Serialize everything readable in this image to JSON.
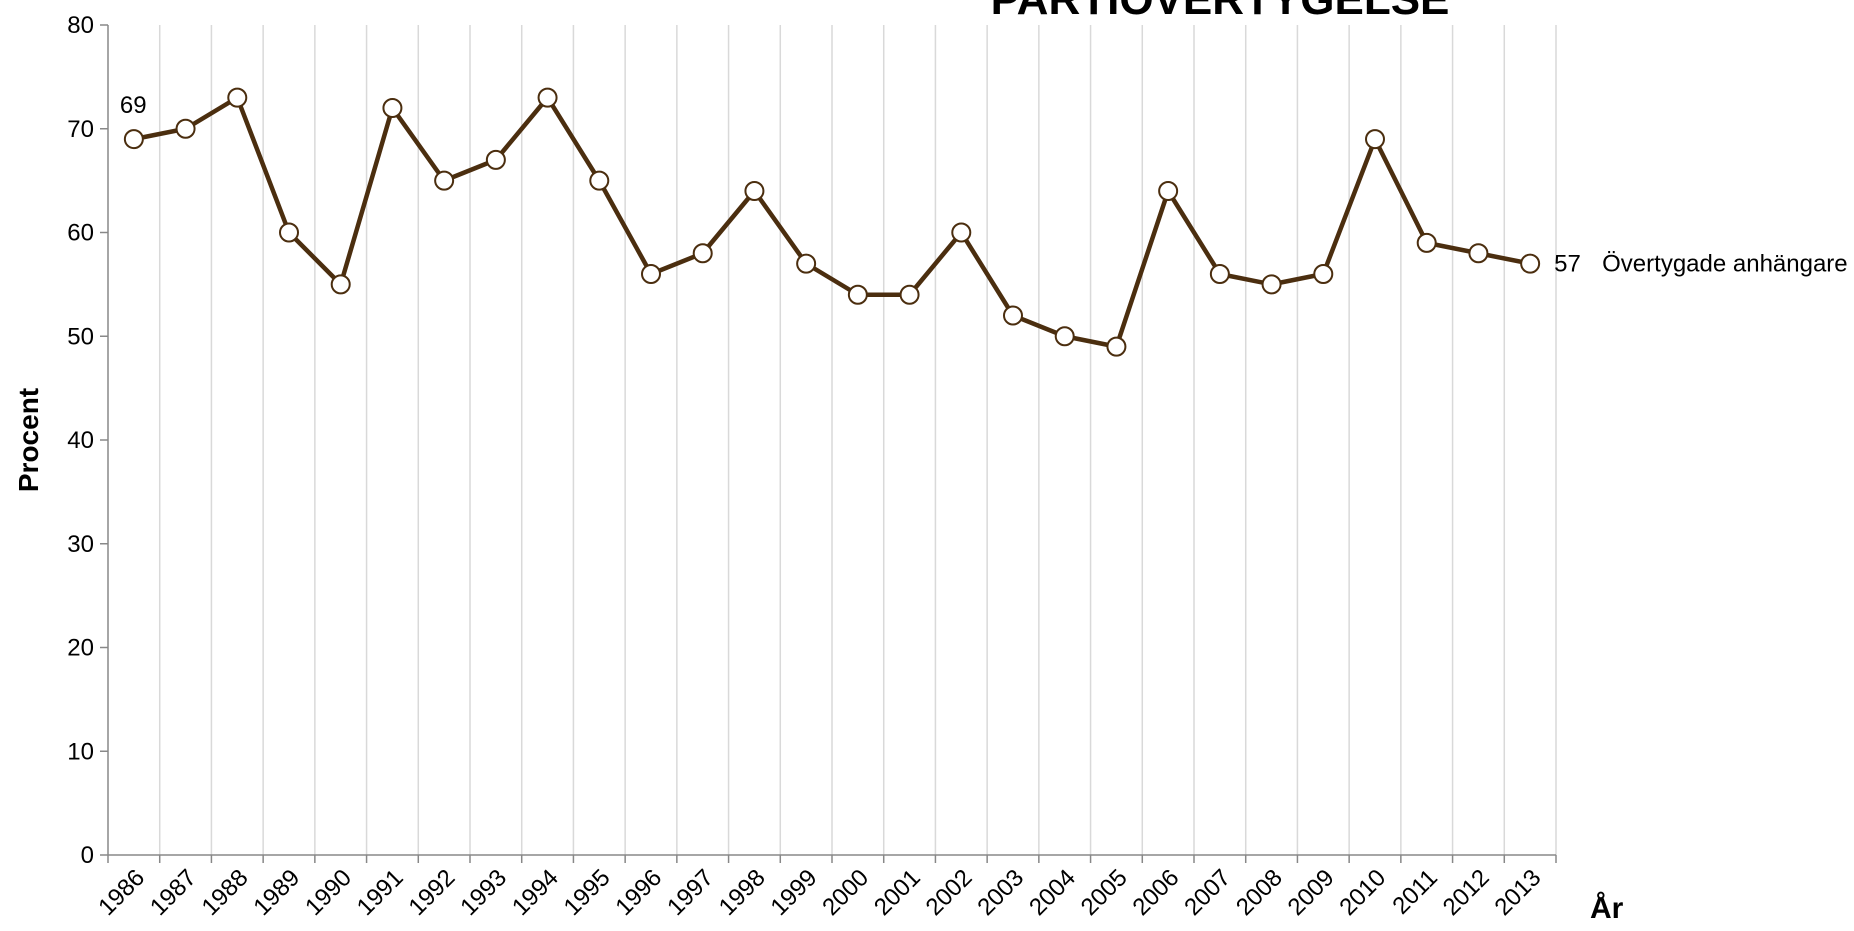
{
  "chart_data": {
    "type": "line",
    "title": "PARTIÖVERTYGELSE",
    "ylabel": "Procent",
    "xlabel": "År",
    "categories": [
      "1986",
      "1987",
      "1988",
      "1989",
      "1990",
      "1991",
      "1992",
      "1993",
      "1994",
      "1995",
      "1996",
      "1997",
      "1998",
      "1999",
      "2000",
      "2001",
      "2002",
      "2003",
      "2004",
      "2005",
      "2006",
      "2007",
      "2008",
      "2009",
      "2010",
      "2011",
      "2012",
      "2013"
    ],
    "series": [
      {
        "name": "Övertygade anhängare",
        "color": "#4b2e0f",
        "values": [
          69,
          70,
          73,
          60,
          55,
          72,
          65,
          67,
          73,
          65,
          56,
          58,
          64,
          57,
          54,
          54,
          60,
          52,
          50,
          49,
          64,
          56,
          55,
          56,
          69,
          59,
          58,
          57
        ],
        "value_labels": [
          "69",
          null,
          null,
          null,
          null,
          null,
          null,
          null,
          null,
          null,
          null,
          null,
          null,
          null,
          null,
          null,
          null,
          null,
          null,
          null,
          null,
          null,
          null,
          null,
          null,
          null,
          null,
          "57"
        ]
      }
    ],
    "ylim": [
      0,
      80
    ],
    "yticks": [
      0,
      10,
      20,
      30,
      40,
      50,
      60,
      70,
      80
    ],
    "grid": true
  }
}
